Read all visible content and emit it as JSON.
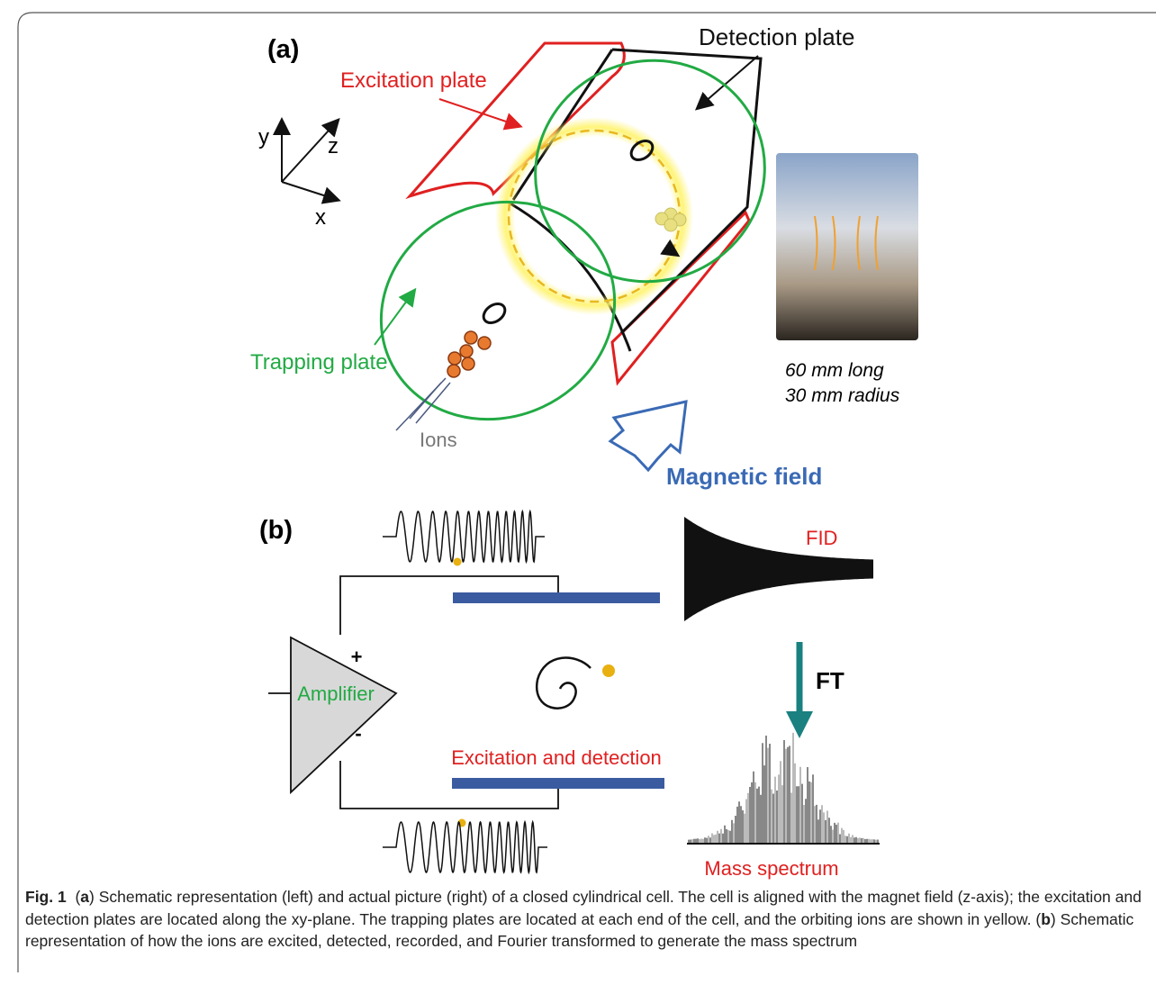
{
  "panel_a": {
    "label": "(a)",
    "detection_plate": "Detection plate",
    "excitation_plate": "Excitation plate",
    "axes": {
      "y": "y",
      "z": "z",
      "x": "x"
    },
    "trapping_plate": "Trapping plate",
    "ions": "Ions",
    "magnetic_field": "Magnetic field",
    "photo_caption": [
      "60 mm long",
      "30 mm radius"
    ]
  },
  "panel_b": {
    "label": "(b)",
    "fid": "FID",
    "ft": "FT",
    "plus": "+",
    "minus": "-",
    "amplifier": "Amplifier",
    "excitation_detection": "Excitation and detection",
    "mass_spectrum": "Mass spectrum"
  },
  "caption": {
    "label": "Fig. 1",
    "parts": [
      "(",
      "a",
      ") Schematic representation (left) and actual picture (right) of a closed cylindrical cell. The cell is aligned with the magnet field (z-axis); the excitation and detection plates are located along the xy-plane. The trapping plates are located at each end of the cell, and the orbiting ions are shown in yellow. (",
      "b",
      ") Schematic representation of how the ions are excited, detected, recorded, and Fourier transformed to generate the mass spectrum"
    ]
  }
}
